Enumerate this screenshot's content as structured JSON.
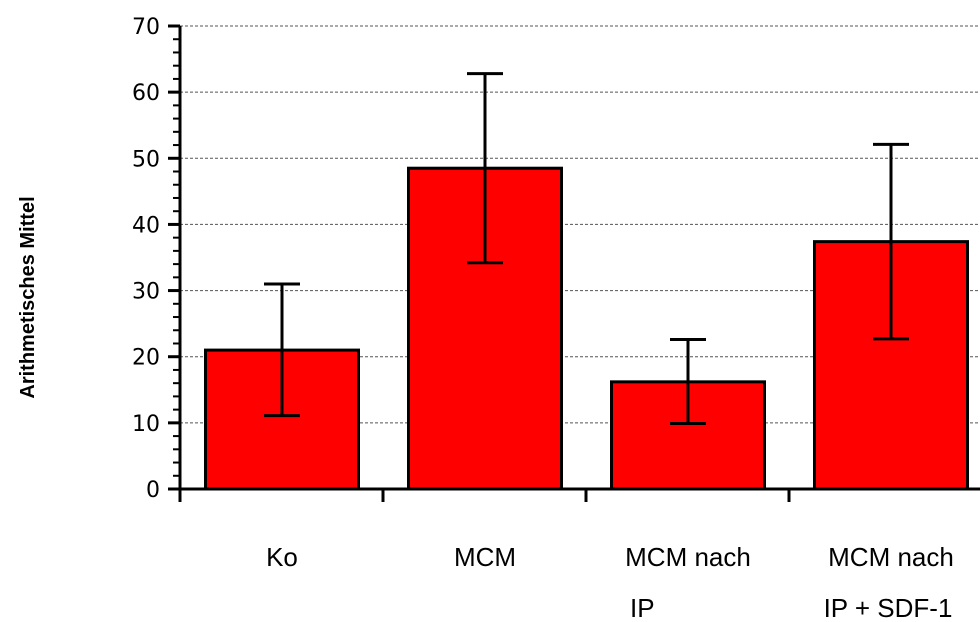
{
  "chart_data": {
    "type": "bar",
    "title": "",
    "xlabel": "",
    "ylabel": "Arithmetisches Mittel",
    "ylim": [
      0,
      70
    ],
    "yticks": [
      0,
      10,
      20,
      30,
      40,
      50,
      60,
      70
    ],
    "grid": true,
    "categories": [
      {
        "line1": "Ko",
        "line2": ""
      },
      {
        "line1": "MCM",
        "line2": ""
      },
      {
        "line1": "MCM nach",
        "line2": "IP"
      },
      {
        "line1": "MCM nach",
        "line2": "IP + SDF-1"
      }
    ],
    "values": [
      21,
      48.5,
      16.2,
      37.4
    ],
    "error_low": [
      11.1,
      34.2,
      9.9,
      22.7
    ],
    "error_high": [
      31,
      62.8,
      22.6,
      52.1
    ],
    "colors": {
      "bar": "#ff0000",
      "outline": "#000000",
      "grid": "#555555"
    }
  }
}
